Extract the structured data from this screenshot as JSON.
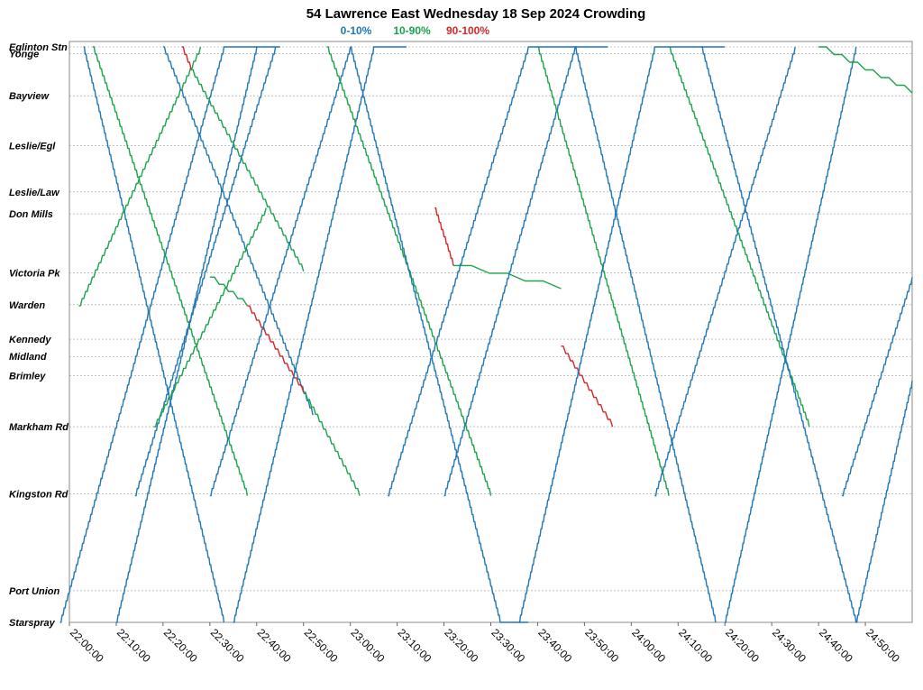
{
  "chart_data": {
    "type": "line",
    "title": "54 Lawrence East Wednesday 18 Sep 2024 Crowding",
    "legend": [
      {
        "label": "0-10%",
        "color": "#1f77b4"
      },
      {
        "label": "10-90%",
        "color": "#1aa34a"
      },
      {
        "label": "90-100%",
        "color": "#d62728"
      }
    ],
    "legend_position": "top-center",
    "grid": true,
    "xlim": [
      "22:00:00",
      "25:00:00"
    ],
    "x_ticks": [
      "22:00:00",
      "22:10:00",
      "22:20:00",
      "22:30:00",
      "22:40:00",
      "22:50:00",
      "23:00:00",
      "23:10:00",
      "23:20:00",
      "23:30:00",
      "23:40:00",
      "23:50:00",
      "24:00:00",
      "24:10:00",
      "24:20:00",
      "24:30:00",
      "24:40:00",
      "24:50:00"
    ],
    "stops": [
      {
        "name": "Eglinton Stn",
        "pos": 0.0
      },
      {
        "name": "Yonge",
        "pos": 0.012
      },
      {
        "name": "Bayview",
        "pos": 0.085
      },
      {
        "name": "Leslie/Egl",
        "pos": 0.172
      },
      {
        "name": "Leslie/Law",
        "pos": 0.252
      },
      {
        "name": "Don Mills",
        "pos": 0.29
      },
      {
        "name": "Victoria Pk",
        "pos": 0.393
      },
      {
        "name": "Warden",
        "pos": 0.448
      },
      {
        "name": "Kennedy",
        "pos": 0.508
      },
      {
        "name": "Midland",
        "pos": 0.538
      },
      {
        "name": "Brimley",
        "pos": 0.571
      },
      {
        "name": "Markham Rd",
        "pos": 0.66
      },
      {
        "name": "Kingston Rd",
        "pos": 0.777
      },
      {
        "name": "Port Union",
        "pos": 0.945
      },
      {
        "name": "Starspray",
        "pos": 1.0
      }
    ],
    "series": [
      {
        "crowd": "low",
        "points": [
          [
            "21:58:00",
            1.0
          ],
          [
            "22:33:00",
            0.0
          ],
          [
            "22:40:00",
            0.0
          ]
        ]
      },
      {
        "crowd": "low",
        "points": [
          [
            "22:03:00",
            0.0
          ],
          [
            "22:33:00",
            1.0
          ]
        ]
      },
      {
        "crowd": "low",
        "points": [
          [
            "22:10:00",
            1.0
          ],
          [
            "22:40:00",
            0.0
          ],
          [
            "22:45:00",
            0.0
          ]
        ]
      },
      {
        "crowd": "mid",
        "points": [
          [
            "22:02:00",
            0.45
          ],
          [
            "22:28:00",
            0.0
          ]
        ]
      },
      {
        "crowd": "mid",
        "points": [
          [
            "22:05:00",
            0.0
          ],
          [
            "22:38:00",
            0.78
          ]
        ]
      },
      {
        "crowd": "high",
        "points": [
          [
            "22:24:00",
            0.0
          ],
          [
            "22:26:00",
            0.04
          ]
        ]
      },
      {
        "crowd": "mid",
        "points": [
          [
            "22:26:00",
            0.04
          ],
          [
            "22:50:00",
            0.39
          ]
        ]
      },
      {
        "crowd": "low",
        "points": [
          [
            "22:20:00",
            0.0
          ],
          [
            "22:52:00",
            0.64
          ]
        ]
      },
      {
        "crowd": "low",
        "points": [
          [
            "22:14:00",
            0.78
          ],
          [
            "22:44:00",
            0.0
          ]
        ]
      },
      {
        "crowd": "mid",
        "points": [
          [
            "22:18:00",
            0.66
          ],
          [
            "22:42:00",
            0.28
          ]
        ]
      },
      {
        "crowd": "mid",
        "points": [
          [
            "22:30:00",
            0.4
          ],
          [
            "22:38:00",
            0.45
          ]
        ]
      },
      {
        "crowd": "high",
        "points": [
          [
            "22:38:00",
            0.45
          ],
          [
            "22:50:00",
            0.6
          ]
        ]
      },
      {
        "crowd": "mid",
        "points": [
          [
            "22:50:00",
            0.6
          ],
          [
            "23:02:00",
            0.78
          ]
        ]
      },
      {
        "crowd": "low",
        "points": [
          [
            "22:30:00",
            0.78
          ],
          [
            "23:00:00",
            0.0
          ]
        ]
      },
      {
        "crowd": "low",
        "points": [
          [
            "22:35:00",
            1.0
          ],
          [
            "23:05:00",
            0.0
          ],
          [
            "23:12:00",
            0.0
          ]
        ]
      },
      {
        "crowd": "mid",
        "points": [
          [
            "22:55:00",
            0.0
          ],
          [
            "23:30:00",
            0.78
          ]
        ]
      },
      {
        "crowd": "low",
        "points": [
          [
            "23:00:00",
            0.0
          ],
          [
            "23:32:00",
            1.0
          ],
          [
            "23:38:00",
            1.0
          ]
        ]
      },
      {
        "crowd": "high",
        "points": [
          [
            "23:18:00",
            0.28
          ],
          [
            "23:22:00",
            0.38
          ]
        ]
      },
      {
        "crowd": "mid",
        "points": [
          [
            "23:22:00",
            0.38
          ],
          [
            "23:45:00",
            0.42
          ]
        ]
      },
      {
        "crowd": "low",
        "points": [
          [
            "23:08:00",
            0.78
          ],
          [
            "23:38:00",
            0.0
          ],
          [
            "23:55:00",
            0.0
          ]
        ]
      },
      {
        "crowd": "low",
        "points": [
          [
            "23:20:00",
            0.78
          ],
          [
            "23:48:00",
            0.0
          ]
        ]
      },
      {
        "crowd": "high",
        "points": [
          [
            "23:45:00",
            0.52
          ],
          [
            "23:56:00",
            0.66
          ]
        ]
      },
      {
        "crowd": "mid",
        "points": [
          [
            "23:40:00",
            0.0
          ],
          [
            "24:08:00",
            0.78
          ]
        ]
      },
      {
        "crowd": "low",
        "points": [
          [
            "23:36:00",
            1.0
          ],
          [
            "24:05:00",
            0.0
          ],
          [
            "24:20:00",
            0.0
          ]
        ]
      },
      {
        "crowd": "low",
        "points": [
          [
            "23:48:00",
            0.0
          ],
          [
            "24:18:00",
            1.0
          ]
        ]
      },
      {
        "crowd": "mid",
        "points": [
          [
            "24:08:00",
            0.0
          ],
          [
            "24:38:00",
            0.66
          ]
        ]
      },
      {
        "crowd": "low",
        "points": [
          [
            "24:05:00",
            0.78
          ],
          [
            "24:35:00",
            0.0
          ]
        ]
      },
      {
        "crowd": "low",
        "points": [
          [
            "24:15:00",
            0.0
          ],
          [
            "24:48:00",
            1.0
          ]
        ]
      },
      {
        "crowd": "low",
        "points": [
          [
            "24:20:00",
            1.0
          ],
          [
            "24:48:00",
            0.0
          ]
        ]
      },
      {
        "crowd": "mid",
        "points": [
          [
            "24:40:00",
            0.0
          ],
          [
            "25:00:00",
            0.08
          ]
        ]
      },
      {
        "crowd": "low",
        "points": [
          [
            "24:45:00",
            0.78
          ],
          [
            "25:00:00",
            0.4
          ]
        ]
      },
      {
        "crowd": "low",
        "points": [
          [
            "24:48:00",
            1.0
          ],
          [
            "25:00:00",
            0.58
          ]
        ]
      }
    ]
  }
}
